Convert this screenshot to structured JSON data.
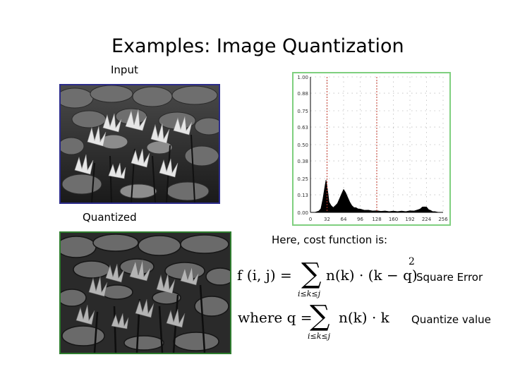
{
  "slide": {
    "title": "Examples: Image Quantization",
    "input_label": "Input",
    "quantized_label": "Quantized",
    "cost_intro": "Here, cost function is:",
    "square_error_label": "Square Error",
    "quantize_value_label": "Quantize value"
  },
  "formulas": {
    "f_lhs": "f (i, j) =",
    "sum_symbol": "∑",
    "f_sub": "i≤k≤j",
    "f_body": "n(k) · (k − q)",
    "f_exp": "2",
    "q_lhs": "where q =",
    "q_sub": "i≤k≤j",
    "q_body": "n(k) · k"
  },
  "chart_data": {
    "type": "area",
    "title": "",
    "xlabel": "",
    "ylabel": "",
    "x_ticks": [
      "0",
      "32",
      "64",
      "96",
      "128",
      "160",
      "192",
      "224",
      "256"
    ],
    "y_ticks": [
      "0.00",
      "0.13",
      "0.25",
      "0.38",
      "0.50",
      "0.63",
      "0.75",
      "0.88",
      "1.00"
    ],
    "xlim": [
      0,
      256
    ],
    "ylim": [
      0,
      1
    ],
    "grid": true,
    "threshold_lines": [
      32,
      128
    ],
    "threshold_color": "#c0392b",
    "fill_color": "#000000",
    "x": [
      0,
      8,
      16,
      20,
      24,
      28,
      30,
      32,
      34,
      36,
      40,
      44,
      48,
      52,
      56,
      60,
      64,
      68,
      72,
      76,
      80,
      84,
      88,
      92,
      96,
      104,
      112,
      120,
      128,
      136,
      144,
      152,
      160,
      168,
      176,
      184,
      192,
      200,
      208,
      212,
      216,
      220,
      224,
      228,
      232,
      236,
      240,
      248,
      256
    ],
    "values": [
      0.0,
      0.0,
      0.01,
      0.03,
      0.1,
      0.2,
      0.24,
      0.2,
      0.14,
      0.08,
      0.05,
      0.04,
      0.05,
      0.07,
      0.1,
      0.14,
      0.17,
      0.15,
      0.11,
      0.08,
      0.05,
      0.04,
      0.035,
      0.03,
      0.025,
      0.02,
      0.017,
      0.015,
      0.013,
      0.012,
      0.011,
      0.01,
      0.01,
      0.01,
      0.01,
      0.01,
      0.012,
      0.015,
      0.02,
      0.03,
      0.04,
      0.045,
      0.04,
      0.025,
      0.015,
      0.01,
      0.006,
      0.002,
      0.0
    ]
  }
}
